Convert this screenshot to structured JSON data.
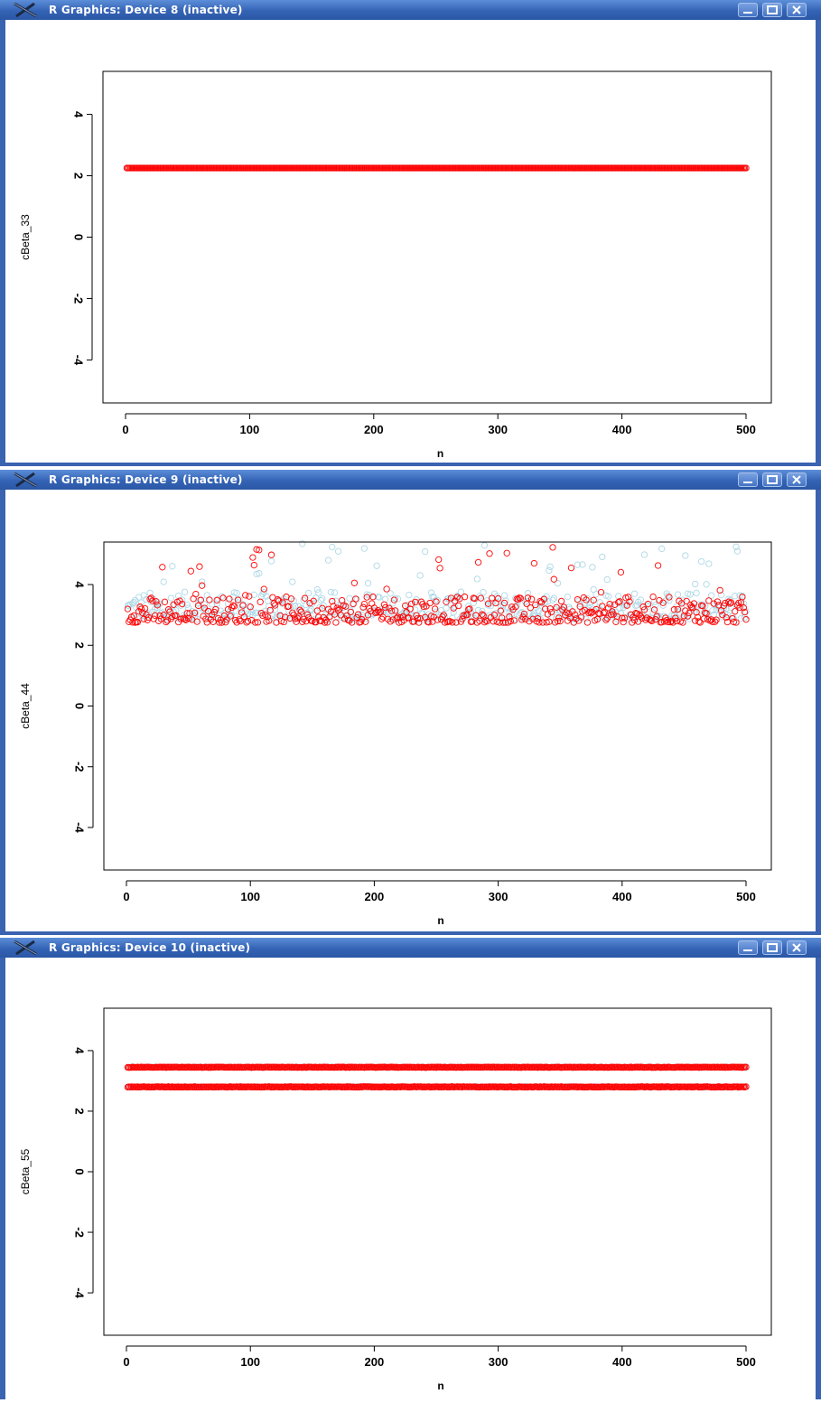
{
  "windows": [
    {
      "title": "R Graphics: Device 8 (inactive)",
      "icons": [
        "x11-icon",
        "minimize-icon",
        "maximize-icon",
        "close-icon"
      ],
      "chart_data": {
        "type": "scatter",
        "title": "",
        "xlabel": "n",
        "ylabel": "cBeta_33",
        "xlim": [
          0,
          500
        ],
        "ylim": [
          -5.4,
          5.4
        ],
        "xticks": [
          0,
          100,
          200,
          300,
          400,
          500
        ],
        "yticks": [
          -4,
          -2,
          0,
          2,
          4
        ],
        "grid": false,
        "x_range": [
          1,
          500
        ],
        "series": [
          {
            "color": "#add8e6",
            "marker": "open-circle",
            "levels": [
              2.25
            ]
          },
          {
            "color": "#ff0000",
            "marker": "open-circle",
            "levels": [
              2.25
            ]
          }
        ]
      }
    },
    {
      "title": "R Graphics: Device 9 (inactive)",
      "icons": [
        "x11-icon",
        "minimize-icon",
        "maximize-icon",
        "close-icon"
      ],
      "chart_data": {
        "type": "scatter",
        "title": "",
        "xlabel": "n",
        "ylabel": "cBeta_44",
        "xlim": [
          0,
          500
        ],
        "ylim": [
          -5.4,
          5.4
        ],
        "xticks": [
          0,
          100,
          200,
          300,
          400,
          500
        ],
        "yticks": [
          -4,
          -2,
          0,
          2,
          4
        ],
        "grid": false,
        "x_range": [
          1,
          500
        ],
        "series": [
          {
            "color": "#add8e6",
            "marker": "open-circle",
            "value_range": [
              2.8,
              5.3
            ],
            "typical": [
              2.8,
              3.7
            ]
          },
          {
            "color": "#ff0000",
            "marker": "open-circle",
            "value_range": [
              2.75,
              5.25
            ],
            "typical": [
              2.75,
              3.6
            ]
          }
        ]
      }
    },
    {
      "title": "R Graphics: Device 10 (inactive)",
      "icons": [
        "x11-icon",
        "minimize-icon",
        "maximize-icon",
        "close-icon"
      ],
      "chart_data": {
        "type": "scatter",
        "title": "",
        "xlabel": "n",
        "ylabel": "cBeta_55",
        "xlim": [
          0,
          500
        ],
        "ylim": [
          -5.4,
          5.4
        ],
        "xticks": [
          0,
          100,
          200,
          300,
          400,
          500
        ],
        "yticks": [
          -4,
          -2,
          0,
          2,
          4
        ],
        "grid": false,
        "x_range": [
          1,
          500
        ],
        "series": [
          {
            "color": "#add8e6",
            "marker": "open-circle",
            "levels": [
              3.45,
              2.8
            ]
          },
          {
            "color": "#ff0000",
            "marker": "open-circle",
            "levels": [
              3.45,
              2.8
            ]
          }
        ]
      }
    }
  ]
}
